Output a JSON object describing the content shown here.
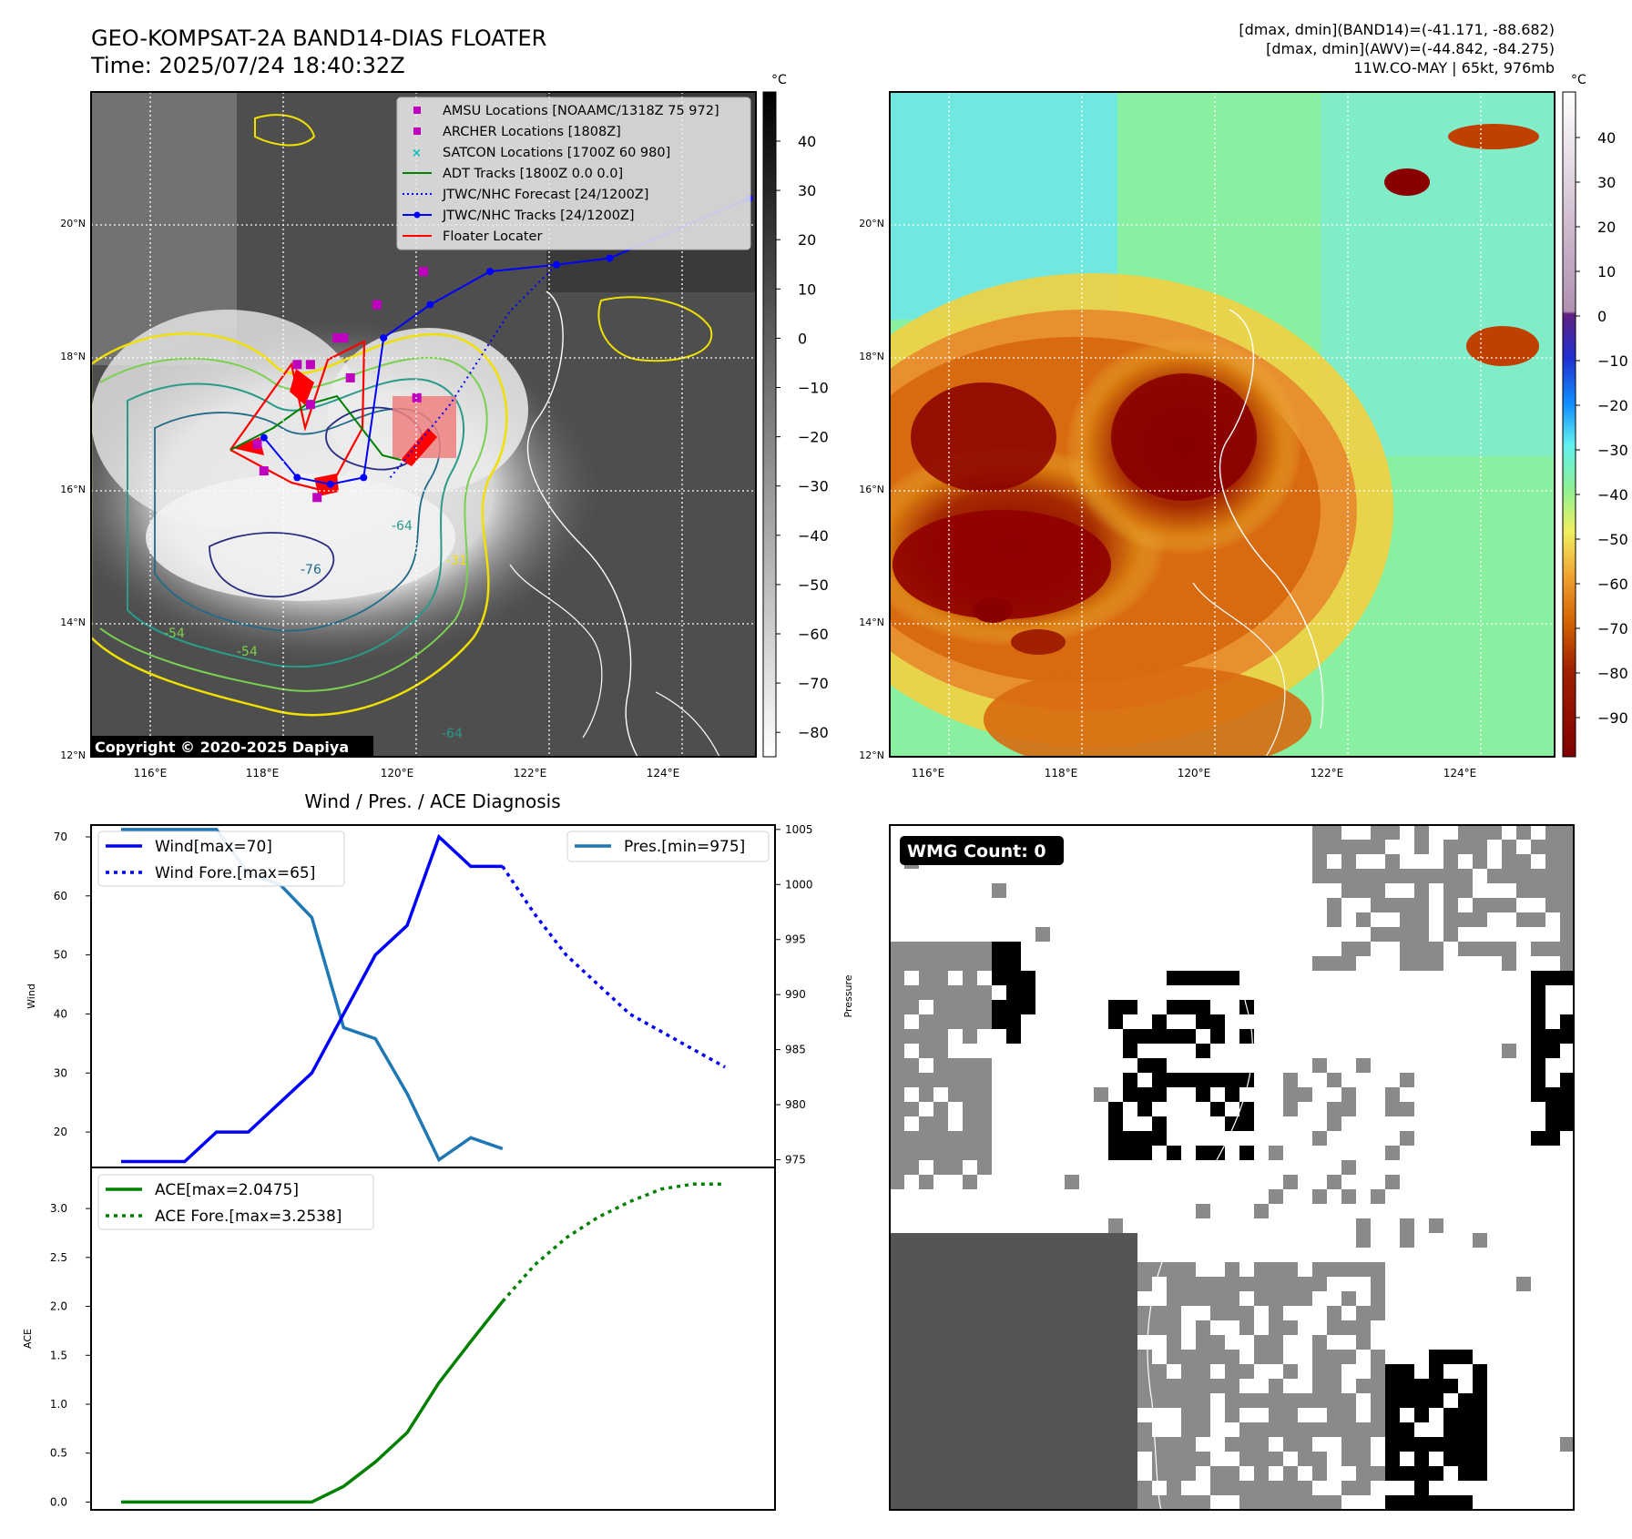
{
  "header": {
    "title_line1": "GEO-KOMPSAT-2A BAND14-DIAS FLOATER",
    "title_line2": "Time: 2025/07/24 18:40:32Z",
    "info_line1": "[dmax, dmin](BAND14)=(-41.171, -88.682)",
    "info_line2": "[dmax, dmin](AWV)=(-44.842, -84.275)",
    "info_line3": "11W.CO-MAY | 65kt, 976mb"
  },
  "copyright": "Copyright © 2020-2025 Dapiya",
  "diag_title": "Wind / Pres. / ACE Diagnosis",
  "wmg_label": "WMG Count: 0",
  "colors": {
    "wind": "#0000ff",
    "pressure": "#1f77b4",
    "ace": "#008000",
    "amsu": "#bf00bf",
    "archer": "#bf00bf",
    "satcon": "#00bfbf",
    "adt": "#008000",
    "jtwc": "#0000ff",
    "floater": "#ff0000"
  },
  "chart_data": [
    {
      "type": "heatmap",
      "name": "ir-greyscale-map",
      "xticks": [
        "116°E",
        "118°E",
        "120°E",
        "122°E",
        "124°E"
      ],
      "yticks": [
        "20°N",
        "18°N",
        "16°N",
        "14°N",
        "12°N"
      ],
      "colorbar": {
        "unit": "°C",
        "ticks": [
          40,
          30,
          20,
          10,
          0,
          -10,
          -20,
          -30,
          -40,
          -50,
          -60,
          -70,
          -80
        ]
      },
      "contour_labels": [
        "-64",
        "-76",
        "-54",
        "-31",
        "-54",
        "-64"
      ],
      "legend": [
        {
          "label": "AMSU Locations [NOAAMC/1318Z 75 972]",
          "marker": "square",
          "color": "#bf00bf"
        },
        {
          "label": "ARCHER Locations [1808Z]",
          "marker": "square",
          "color": "#bf00bf"
        },
        {
          "label": "SATCON Locations [1700Z 60 980]",
          "marker": "x",
          "color": "#00bfbf"
        },
        {
          "label": "ADT Tracks [1800Z 0.0 0.0]",
          "marker": "line",
          "color": "#008000"
        },
        {
          "label": "JTWC/NHC Forecast [24/1200Z]",
          "marker": "dotted",
          "color": "#0000ff"
        },
        {
          "label": "JTWC/NHC Tracks [24/1200Z]",
          "marker": "line-dot",
          "color": "#0000ff"
        },
        {
          "label": "Floater Locater",
          "marker": "line",
          "color": "#ff0000"
        }
      ],
      "jtwc_track": {
        "lon": [
          118.0,
          118.5,
          119.0,
          119.5,
          119.8,
          120.5,
          121.4,
          122.4,
          123.2,
          125.3
        ],
        "lat": [
          16.8,
          16.2,
          16.1,
          16.2,
          18.3,
          18.8,
          19.3,
          19.4,
          19.5,
          20.4
        ]
      },
      "jtwc_forecast": {
        "lon": [
          119.9,
          120.8,
          121.7,
          122.4
        ],
        "lat": [
          16.2,
          17.3,
          18.7,
          19.4
        ]
      },
      "markers_amsu": {
        "lon": [
          118.5,
          118.7,
          119.1,
          119.2,
          118.7,
          119.3,
          119.7,
          120.4,
          120.3,
          117.9,
          118.0,
          118.8
        ],
        "lat": [
          17.9,
          17.9,
          18.3,
          18.3,
          17.3,
          17.7,
          18.8,
          19.3,
          17.4,
          16.7,
          16.3,
          15.9
        ]
      },
      "xlim": [
        115.4,
        125.4
      ],
      "ylim": [
        12.0,
        22.0
      ]
    },
    {
      "type": "heatmap",
      "name": "colored-ir-map",
      "xticks": [
        "116°E",
        "118°E",
        "120°E",
        "122°E",
        "124°E"
      ],
      "yticks": [
        "20°N",
        "18°N",
        "16°N",
        "14°N",
        "12°N"
      ],
      "colorbar": {
        "unit": "°C",
        "ticks": [
          40,
          30,
          20,
          10,
          0,
          -10,
          -20,
          -30,
          -40,
          -50,
          -60,
          -70,
          -80,
          -90
        ]
      },
      "xlim": [
        115.4,
        125.4
      ],
      "ylim": [
        12.0,
        22.0
      ]
    },
    {
      "type": "line",
      "name": "wind-pressure-chart",
      "x": [
        0,
        1,
        2,
        3,
        4,
        5,
        6,
        7,
        8,
        9,
        10,
        11,
        12,
        13,
        14,
        15,
        16,
        17,
        18,
        19
      ],
      "series": [
        {
          "name": "Wind[max=70]",
          "axis": "left",
          "style": "solid",
          "color": "#0000ff",
          "x": [
            0,
            1,
            2,
            3,
            4,
            5,
            6,
            7,
            8,
            9,
            10,
            11,
            12
          ],
          "values": [
            15,
            15,
            15,
            20,
            20,
            25,
            30,
            40,
            50,
            55,
            70,
            65,
            65
          ]
        },
        {
          "name": "Wind Fore.[max=65]",
          "axis": "left",
          "style": "dotted",
          "color": "#0000ff",
          "x": [
            12,
            13,
            14,
            15,
            16,
            17,
            18,
            19
          ],
          "values": [
            65,
            57,
            50,
            45,
            40,
            37,
            34,
            31
          ]
        },
        {
          "name": "Pres.[min=975]",
          "axis": "right",
          "style": "solid",
          "color": "#1f77b4",
          "x": [
            0,
            1,
            2,
            3,
            4,
            5,
            6,
            7,
            8,
            9,
            10,
            11,
            12
          ],
          "values": [
            1005,
            1005,
            1005,
            1005,
            1001,
            1000,
            997,
            987,
            986,
            981,
            975,
            977,
            976
          ]
        }
      ],
      "ylabel": "Wind",
      "ylim": [
        14,
        72
      ],
      "yticks": [
        20,
        30,
        40,
        50,
        60,
        70
      ],
      "y2label": "Pressure",
      "y2lim": [
        974.3,
        1005.4
      ],
      "y2ticks": [
        975,
        980,
        985,
        990,
        995,
        1000,
        1005
      ],
      "legend_left": "top-left",
      "legend_right": "top-right"
    },
    {
      "type": "line",
      "name": "ace-chart",
      "series": [
        {
          "name": "ACE[max=2.0475]",
          "style": "solid",
          "color": "#008000",
          "x": [
            0,
            1,
            2,
            3,
            4,
            5,
            6,
            7,
            8,
            9,
            10,
            11,
            12
          ],
          "values": [
            0,
            0,
            0,
            0,
            0,
            0,
            0,
            0.16,
            0.41,
            0.71,
            1.22,
            1.64,
            2.05
          ]
        },
        {
          "name": "ACE Fore.[max=3.2538]",
          "style": "dotted",
          "color": "#008000",
          "x": [
            12,
            13,
            14,
            15,
            16,
            17,
            18,
            19
          ],
          "values": [
            2.05,
            2.42,
            2.7,
            2.91,
            3.07,
            3.2,
            3.25,
            3.25
          ]
        }
      ],
      "ylabel": "ACE",
      "ylim": [
        -0.08,
        3.42
      ],
      "yticks": [
        "0.0",
        "0.5",
        "1.0",
        "1.5",
        "2.0",
        "2.5",
        "3.0"
      ],
      "legend": "top-left"
    },
    {
      "type": "heatmap",
      "name": "wmg-map",
      "title": "WMG Count: 0"
    }
  ]
}
